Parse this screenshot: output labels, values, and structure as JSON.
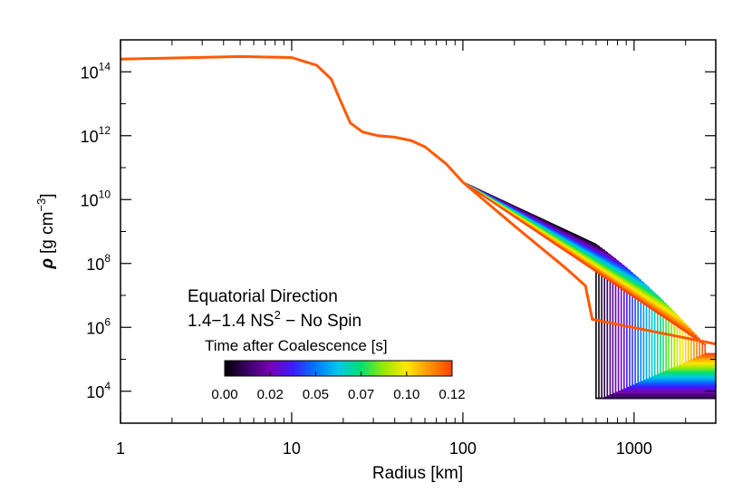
{
  "chart_data": {
    "type": "line",
    "title": "",
    "xlabel": "Radius [km]",
    "ylabel_parts": {
      "symbol": "ρ",
      "unit": "[g cm",
      "exp": "−3",
      "close": "]"
    },
    "xscale": "log",
    "yscale": "log",
    "xlim": [
      1,
      3000
    ],
    "ylim": [
      1000,
      1000000000000000.0
    ],
    "grid": false,
    "x_ticks": [
      {
        "value": 1,
        "label": "1"
      },
      {
        "value": 10,
        "label": "10"
      },
      {
        "value": 100,
        "label": "100"
      },
      {
        "value": 1000,
        "label": "1000"
      }
    ],
    "y_ticks": [
      {
        "value": 10000,
        "base": "10",
        "exp": "4"
      },
      {
        "value": 1000000,
        "base": "10",
        "exp": "6"
      },
      {
        "value": 100000000,
        "base": "10",
        "exp": "8"
      },
      {
        "value": 10000000000,
        "base": "10",
        "exp": "10"
      },
      {
        "value": 1000000000000,
        "base": "10",
        "exp": "12"
      },
      {
        "value": 100000000000000,
        "base": "10",
        "exp": "14"
      }
    ],
    "annotations": {
      "line1": "Equatorial Direction",
      "line2_prefix": "1.4−1.4 NS",
      "line2_sup": "2",
      "line2_suffix": " − No Spin"
    },
    "colorbar": {
      "label": "Time after Coalescence [s]",
      "range": [
        0.0,
        0.12
      ],
      "ticks": [
        "0.00",
        "0.02",
        "0.05",
        "0.07",
        "0.10",
        "0.12"
      ],
      "colormap": [
        "#000000",
        "#3a0066",
        "#7a00b4",
        "#3c1cff",
        "#0078ff",
        "#00c8e6",
        "#00e070",
        "#9ae800",
        "#ffe800",
        "#ff9400",
        "#ff4000"
      ]
    },
    "series_family": {
      "count": 40,
      "time_range_s": [
        0.0,
        0.12
      ],
      "inner_profile": [
        [
          1,
          250000000000000.0
        ],
        [
          5,
          300000000000000.0
        ],
        [
          10,
          280000000000000.0
        ],
        [
          14,
          160000000000000.0
        ],
        [
          17,
          60000000000000.0
        ],
        [
          19,
          15000000000000.0
        ],
        [
          22,
          2500000000000.0
        ],
        [
          26,
          1300000000000.0
        ],
        [
          32,
          1000000000000.0
        ],
        [
          40,
          900000000000.0
        ],
        [
          50,
          700000000000.0
        ],
        [
          60,
          450000000000.0
        ],
        [
          80,
          130000000000.0
        ],
        [
          100,
          35000000000.0
        ]
      ],
      "outer_slope_first": -2.5,
      "outer_slope_last": -3.6,
      "break_radius_km_first": 600,
      "break_radius_km_last": 2600,
      "envelope_floor_first": 5000,
      "envelope_floor_last": 150000,
      "final_series": {
        "time_s": 0.12,
        "color": "#ff5a00",
        "points": [
          [
            1,
            250000000000000.0
          ],
          [
            5,
            300000000000000.0
          ],
          [
            10,
            280000000000000.0
          ],
          [
            14,
            160000000000000.0
          ],
          [
            17,
            60000000000000.0
          ],
          [
            19,
            15000000000000.0
          ],
          [
            22,
            2500000000000.0
          ],
          [
            26,
            1300000000000.0
          ],
          [
            32,
            1000000000000.0
          ],
          [
            40,
            900000000000.0
          ],
          [
            50,
            700000000000.0
          ],
          [
            60,
            450000000000.0
          ],
          [
            80,
            130000000000.0
          ],
          [
            100,
            35000000000.0
          ],
          [
            200,
            1500000000.0
          ],
          [
            400,
            70000000.0
          ],
          [
            520,
            20000000.0
          ],
          [
            570,
            1800000.0
          ],
          [
            3000,
            300000.0
          ]
        ]
      }
    }
  }
}
